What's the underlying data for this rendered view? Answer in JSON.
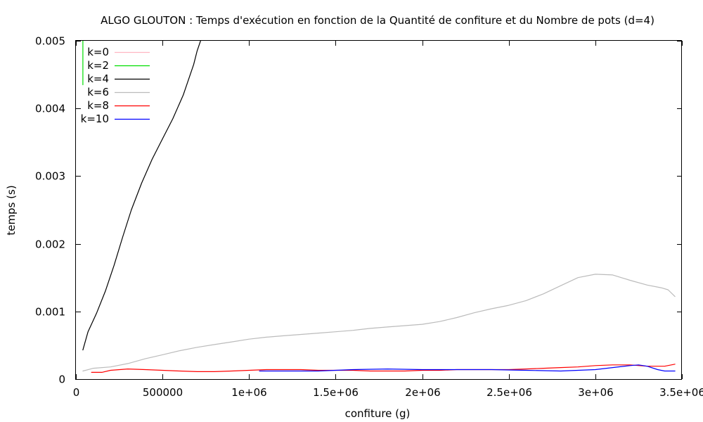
{
  "chart_data": {
    "type": "line",
    "title": "ALGO GLOUTON : Temps d'exécution en fonction de la Quantité de confiture et du Nombre de pots (d=4)",
    "xlabel": "confiture (g)",
    "ylabel": "temps (s)",
    "xlim": [
      0,
      3500000
    ],
    "ylim": [
      0,
      0.005
    ],
    "x_ticks": [
      {
        "value": 0,
        "label": "0"
      },
      {
        "value": 500000,
        "label": "500000"
      },
      {
        "value": 1000000,
        "label": "1e+06"
      },
      {
        "value": 1500000,
        "label": "1.5e+06"
      },
      {
        "value": 2000000,
        "label": "2e+06"
      },
      {
        "value": 2500000,
        "label": "2.5e+06"
      },
      {
        "value": 3000000,
        "label": "3e+06"
      },
      {
        "value": 3500000,
        "label": "3.5e+06"
      }
    ],
    "y_ticks": [
      {
        "value": 0,
        "label": "0"
      },
      {
        "value": 0.001,
        "label": "0.001"
      },
      {
        "value": 0.002,
        "label": "0.002"
      },
      {
        "value": 0.003,
        "label": "0.003"
      },
      {
        "value": 0.004,
        "label": "0.004"
      },
      {
        "value": 0.005,
        "label": "0.005"
      }
    ],
    "grid": false,
    "legend_position": "top-left",
    "series": [
      {
        "name": "k=0",
        "color": "#ffb6c1",
        "points": []
      },
      {
        "name": "k=2",
        "color": "#00dd00",
        "points": [
          [
            40000,
            0.00435
          ],
          [
            40000,
            0.005
          ]
        ]
      },
      {
        "name": "k=4",
        "color": "#000000",
        "points": [
          [
            40000,
            0.00043
          ],
          [
            70000,
            0.0007
          ],
          [
            120000,
            0.00098
          ],
          [
            170000,
            0.0013
          ],
          [
            220000,
            0.00168
          ],
          [
            270000,
            0.0021
          ],
          [
            320000,
            0.0025
          ],
          [
            380000,
            0.0029
          ],
          [
            440000,
            0.00325
          ],
          [
            500000,
            0.00355
          ],
          [
            560000,
            0.00385
          ],
          [
            620000,
            0.0042
          ],
          [
            680000,
            0.00465
          ],
          [
            700000,
            0.00485
          ],
          [
            720000,
            0.005
          ]
        ]
      },
      {
        "name": "k=6",
        "color": "#bbbbbb",
        "points": [
          [
            40000,
            0.00012
          ],
          [
            100000,
            0.00016
          ],
          [
            200000,
            0.00018
          ],
          [
            300000,
            0.00023
          ],
          [
            400000,
            0.0003
          ],
          [
            500000,
            0.00036
          ],
          [
            600000,
            0.00042
          ],
          [
            700000,
            0.00047
          ],
          [
            800000,
            0.00051
          ],
          [
            900000,
            0.00055
          ],
          [
            1000000,
            0.00059
          ],
          [
            1100000,
            0.00062
          ],
          [
            1200000,
            0.00064
          ],
          [
            1300000,
            0.00066
          ],
          [
            1400000,
            0.00068
          ],
          [
            1500000,
            0.0007
          ],
          [
            1600000,
            0.00072
          ],
          [
            1700000,
            0.00075
          ],
          [
            1800000,
            0.00077
          ],
          [
            1900000,
            0.00079
          ],
          [
            2000000,
            0.00081
          ],
          [
            2100000,
            0.00085
          ],
          [
            2200000,
            0.00091
          ],
          [
            2300000,
            0.00098
          ],
          [
            2400000,
            0.00104
          ],
          [
            2500000,
            0.00109
          ],
          [
            2600000,
            0.00116
          ],
          [
            2700000,
            0.00126
          ],
          [
            2800000,
            0.00138
          ],
          [
            2900000,
            0.0015
          ],
          [
            3000000,
            0.00155
          ],
          [
            3100000,
            0.00154
          ],
          [
            3200000,
            0.00146
          ],
          [
            3300000,
            0.00139
          ],
          [
            3380000,
            0.00135
          ],
          [
            3420000,
            0.00132
          ],
          [
            3460000,
            0.00122
          ]
        ]
      },
      {
        "name": "k=8",
        "color": "#ff0000",
        "points": [
          [
            90000,
            0.0001
          ],
          [
            150000,
            0.0001
          ],
          [
            200000,
            0.00013
          ],
          [
            300000,
            0.00015
          ],
          [
            400000,
            0.00014
          ],
          [
            500000,
            0.00013
          ],
          [
            600000,
            0.00012
          ],
          [
            700000,
            0.00011
          ],
          [
            800000,
            0.00011
          ],
          [
            900000,
            0.00012
          ],
          [
            1000000,
            0.00013
          ],
          [
            1100000,
            0.00014
          ],
          [
            1200000,
            0.00014
          ],
          [
            1300000,
            0.00014
          ],
          [
            1400000,
            0.00013
          ],
          [
            1500000,
            0.00013
          ],
          [
            1600000,
            0.00013
          ],
          [
            1700000,
            0.00012
          ],
          [
            1800000,
            0.00012
          ],
          [
            1900000,
            0.00012
          ],
          [
            2000000,
            0.00013
          ],
          [
            2100000,
            0.00013
          ],
          [
            2200000,
            0.00014
          ],
          [
            2300000,
            0.00014
          ],
          [
            2400000,
            0.00014
          ],
          [
            2500000,
            0.00014
          ],
          [
            2600000,
            0.00015
          ],
          [
            2700000,
            0.00016
          ],
          [
            2800000,
            0.00017
          ],
          [
            2900000,
            0.00018
          ],
          [
            3000000,
            0.0002
          ],
          [
            3100000,
            0.00021
          ],
          [
            3200000,
            0.00021
          ],
          [
            3300000,
            0.00019
          ],
          [
            3400000,
            0.00019
          ],
          [
            3460000,
            0.00022
          ]
        ]
      },
      {
        "name": "k=10",
        "color": "#0000ff",
        "points": [
          [
            1060000,
            0.00012
          ],
          [
            1200000,
            0.00012
          ],
          [
            1400000,
            0.00012
          ],
          [
            1600000,
            0.00014
          ],
          [
            1800000,
            0.00015
          ],
          [
            2000000,
            0.00014
          ],
          [
            2200000,
            0.00014
          ],
          [
            2400000,
            0.00014
          ],
          [
            2600000,
            0.00013
          ],
          [
            2800000,
            0.00012
          ],
          [
            3000000,
            0.00014
          ],
          [
            3100000,
            0.00017
          ],
          [
            3200000,
            0.0002
          ],
          [
            3250000,
            0.00021
          ],
          [
            3300000,
            0.00019
          ],
          [
            3360000,
            0.00014
          ],
          [
            3400000,
            0.00012
          ],
          [
            3460000,
            0.00012
          ]
        ]
      }
    ]
  }
}
